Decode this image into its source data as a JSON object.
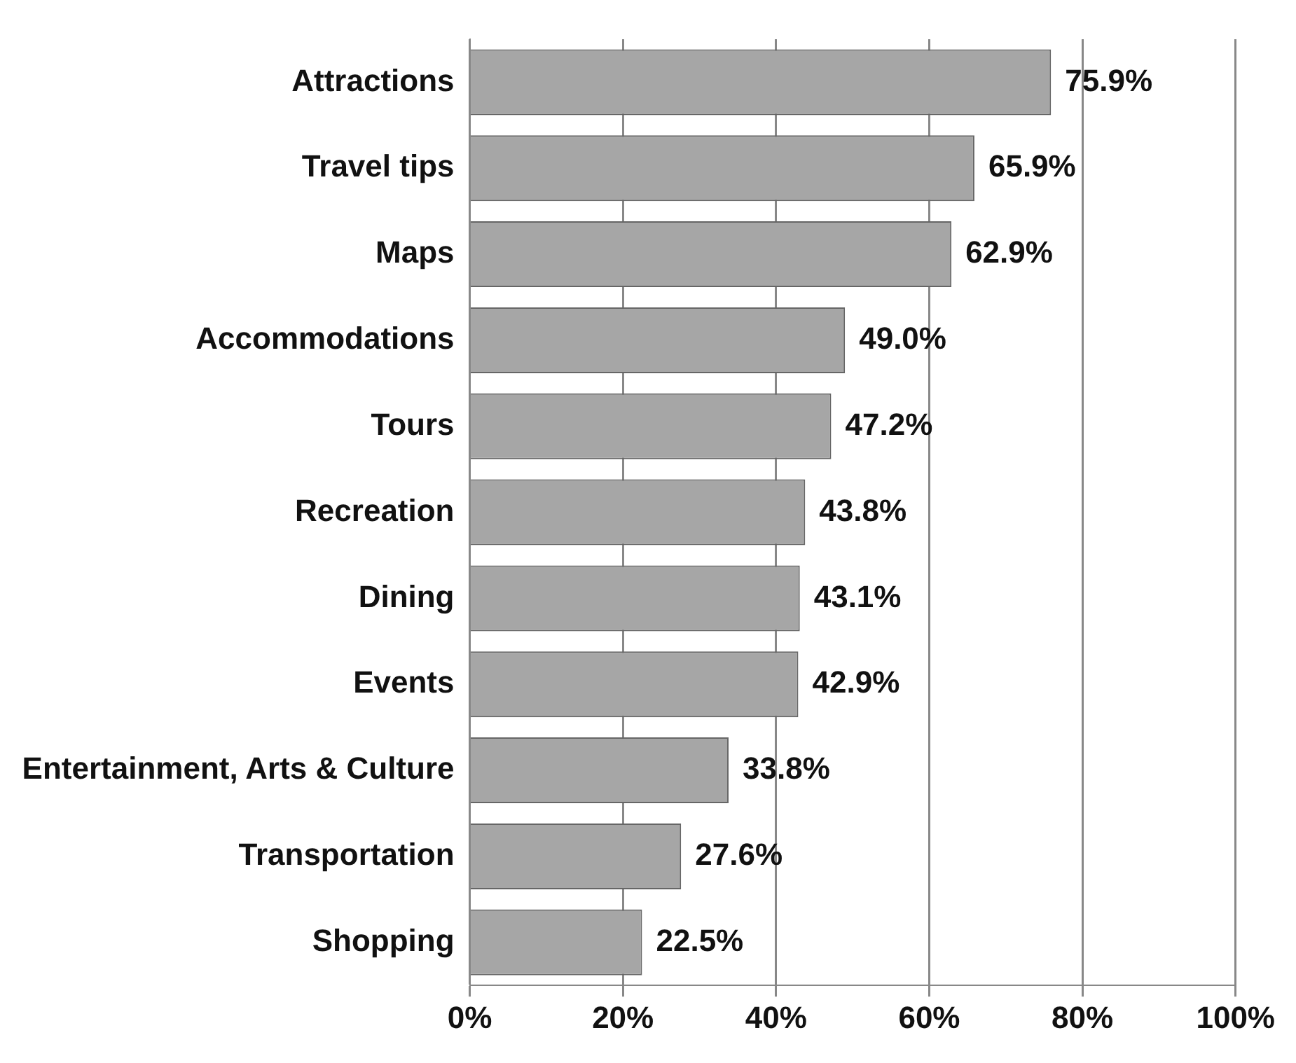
{
  "chart_data": {
    "type": "bar",
    "orientation": "horizontal",
    "categories": [
      "Attractions",
      "Travel tips",
      "Maps",
      "Accommodations",
      "Tours",
      "Recreation",
      "Dining",
      "Events",
      "Entertainment, Arts & Culture",
      "Transportation",
      "Shopping"
    ],
    "values": [
      75.9,
      65.9,
      62.9,
      49.0,
      47.2,
      43.8,
      43.1,
      42.9,
      33.8,
      27.6,
      22.5
    ],
    "value_labels": [
      "75.9%",
      "65.9%",
      "62.9%",
      "49.0%",
      "47.2%",
      "43.8%",
      "43.1%",
      "42.9%",
      "33.8%",
      "27.6%",
      "22.5%"
    ],
    "color": "#a6a6a6",
    "xlim": [
      0,
      100
    ],
    "xticks": [
      {
        "value": 0,
        "label": "0%"
      },
      {
        "value": 20,
        "label": "20%"
      },
      {
        "value": 40,
        "label": "40%"
      },
      {
        "value": 60,
        "label": "60%"
      },
      {
        "value": 80,
        "label": "80%"
      },
      {
        "value": 100,
        "label": "100%"
      }
    ],
    "grid": "x",
    "legend": false
  }
}
